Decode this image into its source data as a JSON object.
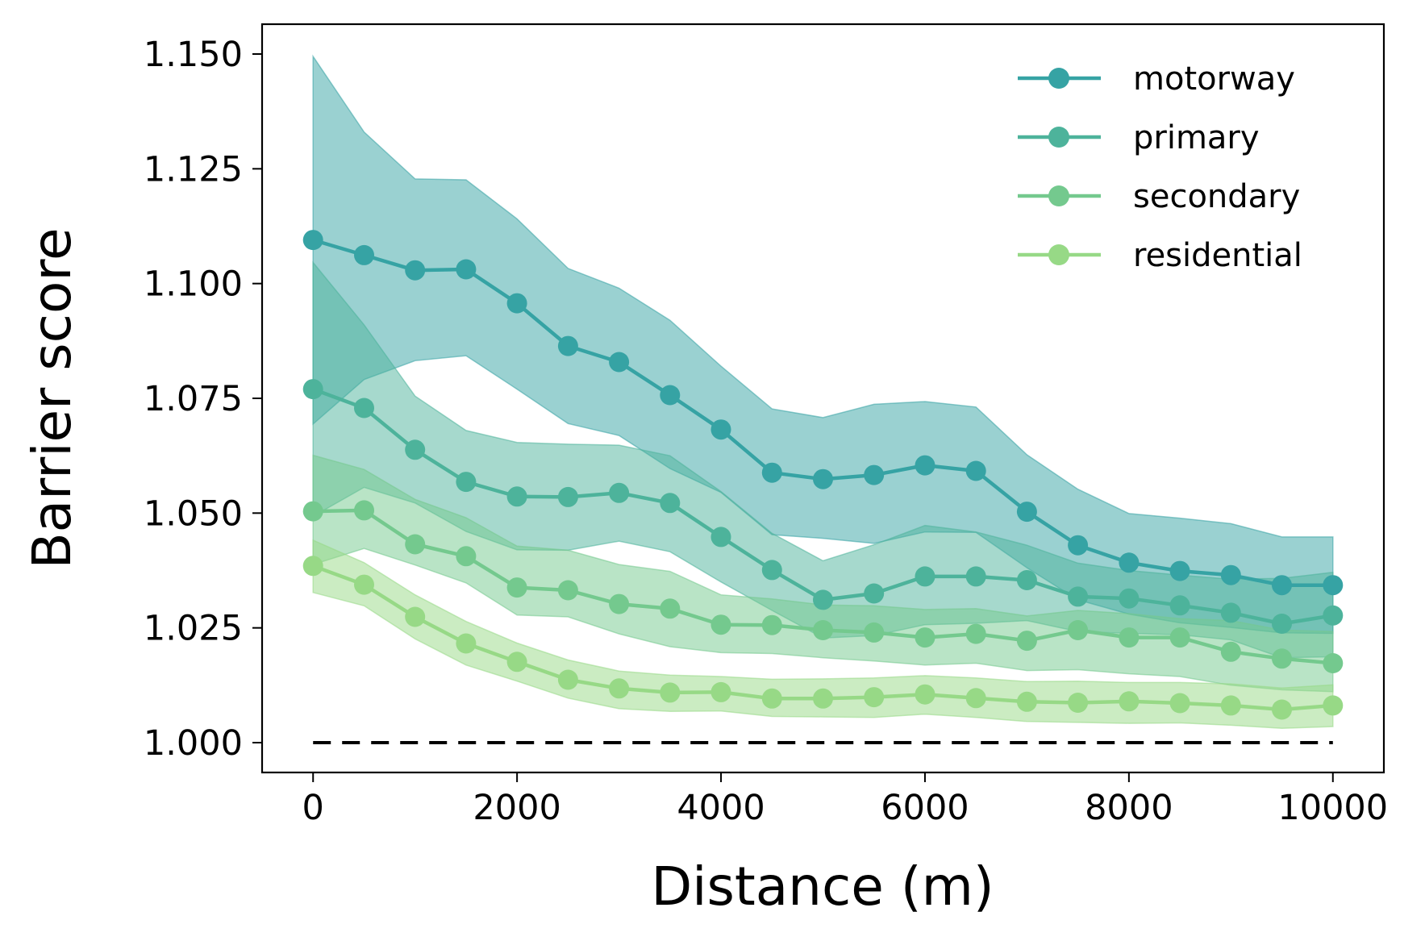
{
  "chart_data": {
    "type": "line",
    "xlabel": "Distance (m)",
    "ylabel": "Barrier score",
    "xlim": [
      -500,
      10500
    ],
    "ylim": [
      0.9935,
      1.1565
    ],
    "xticks": [
      0,
      2000,
      4000,
      6000,
      8000,
      10000
    ],
    "xtick_labels": [
      "0",
      "2000",
      "4000",
      "6000",
      "8000",
      "10000"
    ],
    "yticks": [
      1.0,
      1.025,
      1.05,
      1.075,
      1.1,
      1.125,
      1.15
    ],
    "ytick_labels": [
      "1.000",
      "1.025",
      "1.050",
      "1.075",
      "1.100",
      "1.125",
      "1.150"
    ],
    "grid": false,
    "legend_position": "top-right",
    "reference_line": {
      "y": 1.0,
      "x": [
        0,
        10000
      ],
      "style": "dashed",
      "color": "#000000"
    },
    "x": [
      0,
      500,
      1000,
      1500,
      2000,
      2500,
      3000,
      3500,
      4000,
      4500,
      5000,
      5500,
      6000,
      6500,
      7000,
      7500,
      8000,
      8500,
      9000,
      9500,
      10000
    ],
    "series": [
      {
        "name": "motorway",
        "color": "#36a3a4",
        "values": [
          1.1095,
          1.1062,
          1.1029,
          1.1031,
          1.0957,
          1.0864,
          1.0829,
          1.0757,
          1.0682,
          1.0588,
          1.0574,
          1.0583,
          1.0604,
          1.0592,
          1.0503,
          1.043,
          1.0392,
          1.0374,
          1.0365,
          1.0343,
          1.0343
        ],
        "upper": [
          1.1495,
          1.133,
          1.1228,
          1.1226,
          1.1141,
          1.1033,
          1.099,
          1.092,
          1.082,
          1.0727,
          1.0708,
          1.0737,
          1.0743,
          1.0731,
          1.0627,
          1.0552,
          1.0499,
          1.0489,
          1.0477,
          1.0448,
          1.0448
        ],
        "lower": [
          1.0694,
          1.0791,
          1.0832,
          1.0843,
          1.077,
          1.0695,
          1.0669,
          1.0597,
          1.0545,
          1.0453,
          1.0445,
          1.0434,
          1.0459,
          1.0458,
          1.0381,
          1.0311,
          1.028,
          1.0261,
          1.0251,
          1.0239,
          1.0238
        ]
      },
      {
        "name": "primary",
        "color": "#4db39b",
        "values": [
          1.077,
          1.0729,
          1.0638,
          1.0568,
          1.0536,
          1.0535,
          1.0544,
          1.0522,
          1.0448,
          1.0376,
          1.0311,
          1.0325,
          1.0362,
          1.0362,
          1.0354,
          1.0318,
          1.0314,
          1.0299,
          1.0283,
          1.0259,
          1.0277
        ],
        "upper": [
          1.1046,
          1.091,
          1.0755,
          1.068,
          1.0654,
          1.065,
          1.0648,
          1.0625,
          1.0547,
          1.0456,
          1.0396,
          1.0431,
          1.0473,
          1.0459,
          1.043,
          1.0391,
          1.0375,
          1.0365,
          1.0356,
          1.0358,
          1.0371
        ],
        "lower": [
          1.0493,
          1.0556,
          1.0522,
          1.046,
          1.042,
          1.0419,
          1.0439,
          1.0416,
          1.035,
          1.0288,
          1.0228,
          1.0233,
          1.0257,
          1.026,
          1.0266,
          1.0242,
          1.0238,
          1.0235,
          1.0224,
          1.0185,
          1.0187
        ]
      },
      {
        "name": "secondary",
        "color": "#74c98e",
        "values": [
          1.0504,
          1.0506,
          1.0432,
          1.0406,
          1.0338,
          1.0332,
          1.0302,
          1.0292,
          1.0257,
          1.0256,
          1.0245,
          1.024,
          1.0229,
          1.0237,
          1.0222,
          1.0245,
          1.0229,
          1.0229,
          1.0198,
          1.0183,
          1.0173
        ],
        "upper": [
          1.0626,
          1.0595,
          1.053,
          1.049,
          1.0428,
          1.0419,
          1.0388,
          1.0373,
          1.0322,
          1.0313,
          1.03,
          1.0298,
          1.029,
          1.0292,
          1.0276,
          1.0288,
          1.0281,
          1.027,
          1.0266,
          1.0245,
          1.0242
        ],
        "lower": [
          1.0388,
          1.0423,
          1.0387,
          1.0348,
          1.0278,
          1.0274,
          1.0237,
          1.0209,
          1.0196,
          1.0194,
          1.0185,
          1.0178,
          1.0169,
          1.0173,
          1.0157,
          1.0159,
          1.015,
          1.0144,
          1.0125,
          1.0115,
          1.0111
        ]
      },
      {
        "name": "residential",
        "color": "#97d986",
        "values": [
          1.0385,
          1.0344,
          1.0274,
          1.0216,
          1.0176,
          1.0137,
          1.0118,
          1.0109,
          1.011,
          1.0096,
          1.0096,
          1.0099,
          1.0105,
          1.0097,
          1.0089,
          1.0087,
          1.009,
          1.0086,
          1.0081,
          1.0072,
          1.0081
        ],
        "upper": [
          1.0441,
          1.0392,
          1.0322,
          1.0264,
          1.0217,
          1.018,
          1.0156,
          1.0147,
          1.0144,
          1.0138,
          1.0139,
          1.0141,
          1.0146,
          1.0141,
          1.0133,
          1.0134,
          1.0131,
          1.0131,
          1.0128,
          1.0119,
          1.0126
        ],
        "lower": [
          1.0327,
          1.0298,
          1.0226,
          1.0169,
          1.0134,
          1.0097,
          1.0074,
          1.0068,
          1.0069,
          1.0057,
          1.0056,
          1.0055,
          1.0062,
          1.0055,
          1.0046,
          1.0044,
          1.0042,
          1.0043,
          1.0038,
          1.0031,
          1.0035
        ]
      }
    ]
  }
}
